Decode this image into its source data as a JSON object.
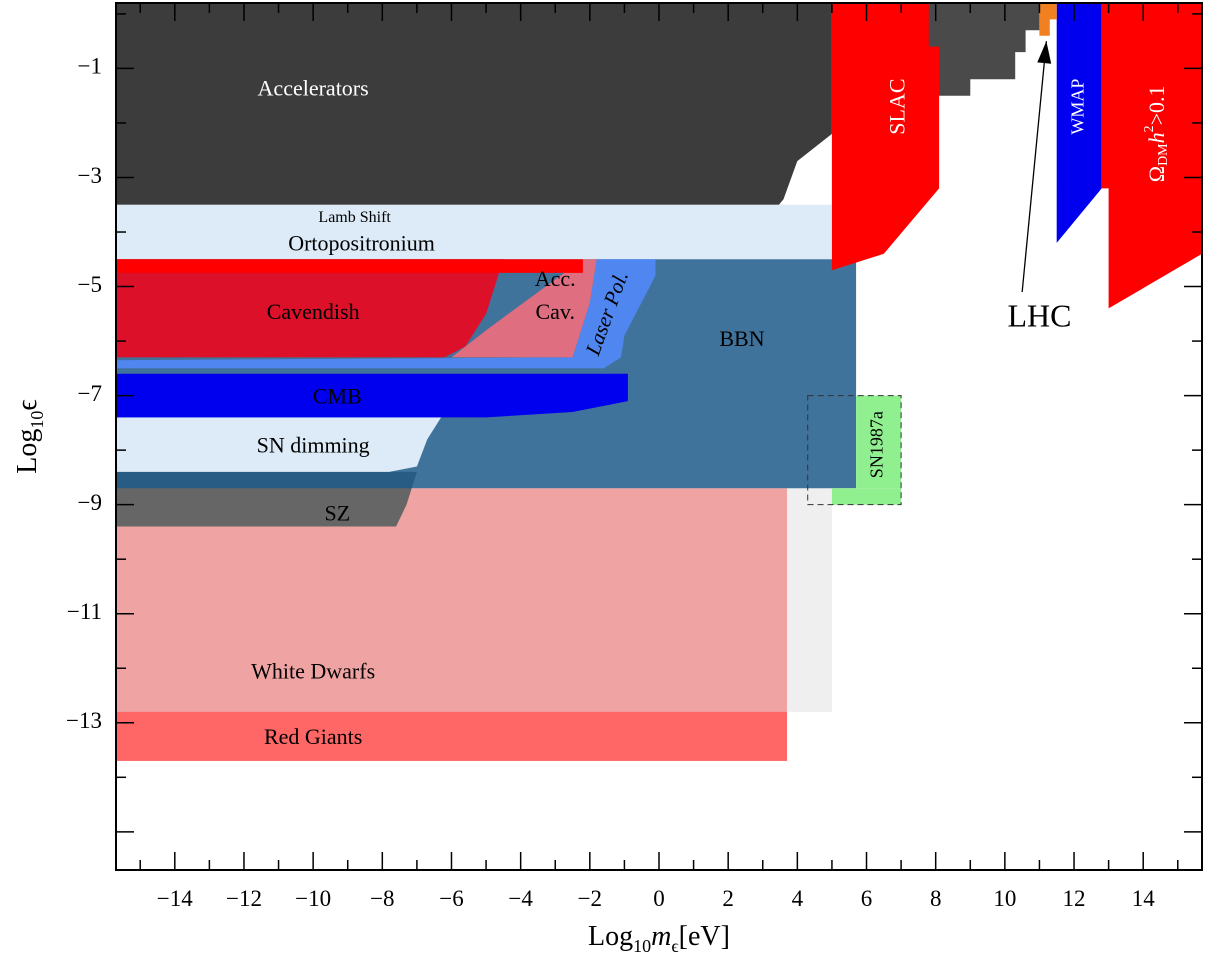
{
  "chart_data": {
    "type": "area",
    "title": "",
    "xlabel_main": "Log",
    "xlabel_sub": "10",
    "xlabel_var": "m",
    "xlabel_varsub": "ϵ",
    "xlabel_unit": "[eV]",
    "ylabel_main": "Log",
    "ylabel_sub": "10",
    "ylabel_var": "ϵ",
    "xlim": [
      -15.7,
      15.7
    ],
    "ylim": [
      -15.7,
      0.2
    ],
    "x_ticks": [
      -14,
      -12,
      -10,
      -8,
      -6,
      -4,
      -2,
      0,
      2,
      4,
      6,
      8,
      10,
      12,
      14
    ],
    "x_tick_labels": [
      "−14",
      "−12",
      "−10",
      "−8",
      "−6",
      "−4",
      "−2",
      "0",
      "2",
      "4",
      "6",
      "8",
      "10",
      "12",
      "14"
    ],
    "y_ticks": [
      -1,
      -3,
      -5,
      -7,
      -9,
      -11,
      -13
    ],
    "y_tick_labels": [
      "−1",
      "−3",
      "−5",
      "−7",
      "−9",
      "−11",
      "−13"
    ],
    "grid": false,
    "regions": [
      {
        "name": "Accelerators",
        "color": "#3c3c3c",
        "opacity": 1.0,
        "points": [
          [
            -15.7,
            0.2
          ],
          [
            5.0,
            0.2
          ],
          [
            5.0,
            -2.2
          ],
          [
            4.0,
            -2.7
          ],
          [
            3.6,
            -3.4
          ],
          [
            3.2,
            -3.7
          ],
          [
            2.0,
            -3.8
          ],
          [
            -15.7,
            -3.8
          ]
        ]
      },
      {
        "name": "Accelerators-steps",
        "color": "#4a4a4a",
        "opacity": 1.0,
        "points": [
          [
            5.0,
            0.2
          ],
          [
            11.0,
            0.2
          ],
          [
            11.0,
            -0.3
          ],
          [
            10.6,
            -0.3
          ],
          [
            10.6,
            -0.7
          ],
          [
            10.3,
            -0.7
          ],
          [
            10.3,
            -1.2
          ],
          [
            9.0,
            -1.2
          ],
          [
            9.0,
            -1.5
          ],
          [
            8.0,
            -1.5
          ],
          [
            8.0,
            -2.0
          ],
          [
            5.0,
            -2.0
          ]
        ]
      },
      {
        "name": "Lamb Shift",
        "color": "#999999",
        "opacity": 1.0,
        "points": [
          [
            -15.7,
            -3.5
          ],
          [
            3.6,
            -3.5
          ],
          [
            3.0,
            -3.95
          ],
          [
            -15.7,
            -3.95
          ]
        ]
      },
      {
        "name": "Ortopositronium",
        "color": "#dcebf7",
        "opacity": 1.0,
        "points": [
          [
            -15.7,
            -3.5
          ],
          [
            5.0,
            -3.5
          ],
          [
            5.0,
            -4.5
          ],
          [
            -15.7,
            -4.5
          ]
        ]
      },
      {
        "name": "White Dwarfs",
        "color": "#f0a3a3",
        "opacity": 1.0,
        "points": [
          [
            -15.7,
            -8.7
          ],
          [
            3.7,
            -8.7
          ],
          [
            3.7,
            -13.7
          ],
          [
            -15.7,
            -13.7
          ]
        ]
      },
      {
        "name": "White Dwarfs-ext",
        "color": "#efefef",
        "opacity": 1.0,
        "points": [
          [
            3.7,
            -8.7
          ],
          [
            5.0,
            -8.7
          ],
          [
            5.0,
            -12.8
          ],
          [
            3.7,
            -12.8
          ]
        ]
      },
      {
        "name": "Red Giants",
        "color": "#ff6666",
        "opacity": 1.0,
        "points": [
          [
            -15.7,
            -12.8
          ],
          [
            3.7,
            -12.8
          ],
          [
            3.7,
            -13.7
          ],
          [
            -15.7,
            -13.7
          ]
        ]
      },
      {
        "name": "SZ",
        "color": "#666666",
        "opacity": 1.0,
        "points": [
          [
            -15.7,
            -8.4
          ],
          [
            -7.0,
            -8.4
          ],
          [
            -7.3,
            -9.0
          ],
          [
            -7.6,
            -9.4
          ],
          [
            -15.7,
            -9.4
          ]
        ]
      },
      {
        "name": "BBN",
        "color": "#1e5a8a",
        "opacity": 0.85,
        "points": [
          [
            -15.7,
            -4.5
          ],
          [
            5.7,
            -4.5
          ],
          [
            5.7,
            -8.7
          ],
          [
            -15.7,
            -8.7
          ]
        ]
      },
      {
        "name": "SN dimming",
        "color": "#dcebf7",
        "opacity": 1.0,
        "points": [
          [
            -15.7,
            -7.4
          ],
          [
            -6.3,
            -7.4
          ],
          [
            -6.7,
            -7.8
          ],
          [
            -7.0,
            -8.3
          ],
          [
            -7.8,
            -8.4
          ],
          [
            -15.7,
            -8.4
          ]
        ]
      },
      {
        "name": "CMB",
        "color": "#0000ee",
        "opacity": 1.0,
        "points": [
          [
            -15.7,
            -6.6
          ],
          [
            -0.9,
            -6.6
          ],
          [
            -0.9,
            -7.1
          ],
          [
            -2.5,
            -7.3
          ],
          [
            -5.0,
            -7.4
          ],
          [
            -15.7,
            -7.4
          ]
        ]
      },
      {
        "name": "Laser Pol.",
        "color": "#4f86f0",
        "opacity": 1.0,
        "points": [
          [
            -1.8,
            -4.5
          ],
          [
            -0.1,
            -4.5
          ],
          [
            -0.1,
            -4.8
          ],
          [
            -1.0,
            -5.9
          ],
          [
            -1.1,
            -6.3
          ],
          [
            -1.6,
            -6.5
          ],
          [
            -15.7,
            -6.5
          ],
          [
            -15.7,
            -6.35
          ],
          [
            -2.5,
            -6.3
          ],
          [
            -2.0,
            -5.3
          ]
        ]
      },
      {
        "name": "Acc. Cav.",
        "color": "#de6e80",
        "opacity": 1.0,
        "points": [
          [
            -2.2,
            -4.5
          ],
          [
            -1.8,
            -4.5
          ],
          [
            -2.0,
            -5.3
          ],
          [
            -2.5,
            -6.3
          ],
          [
            -6.0,
            -6.3
          ],
          [
            -5.0,
            -5.8
          ]
        ]
      },
      {
        "name": "Cavendish",
        "color": "#dc1028",
        "opacity": 1.0,
        "points": [
          [
            -15.7,
            -4.5
          ],
          [
            -4.5,
            -4.5
          ],
          [
            -5.0,
            -5.5
          ],
          [
            -5.6,
            -6.1
          ],
          [
            -6.2,
            -6.3
          ],
          [
            -15.7,
            -6.3
          ]
        ]
      },
      {
        "name": "Cavendish-top",
        "color": "#ff0000",
        "opacity": 1.0,
        "points": [
          [
            -15.7,
            -4.5
          ],
          [
            -2.2,
            -4.5
          ],
          [
            -2.2,
            -4.75
          ],
          [
            -15.7,
            -4.75
          ]
        ]
      },
      {
        "name": "SN1987a",
        "color": "#90f090",
        "opacity": 1.0,
        "points": [
          [
            5.0,
            -8.7
          ],
          [
            7.0,
            -8.7
          ],
          [
            7.0,
            -9.0
          ],
          [
            5.0,
            -9.0
          ]
        ]
      },
      {
        "name": "SN1987a-upper",
        "color": "#90f090",
        "opacity": 1.0,
        "points": [
          [
            5.7,
            -7.0
          ],
          [
            7.0,
            -7.0
          ],
          [
            7.0,
            -8.7
          ],
          [
            5.7,
            -8.7
          ]
        ]
      },
      {
        "name": "SLAC",
        "color": "#ff0000",
        "opacity": 1.0,
        "points": [
          [
            5.0,
            0.2
          ],
          [
            7.8,
            0.2
          ],
          [
            7.8,
            -0.6
          ],
          [
            8.1,
            -0.6
          ],
          [
            8.1,
            -3.2
          ],
          [
            6.5,
            -4.4
          ],
          [
            5.0,
            -4.7
          ]
        ]
      },
      {
        "name": "WMAP",
        "color": "#0000ee",
        "opacity": 1.0,
        "points": [
          [
            11.5,
            0.2
          ],
          [
            12.8,
            0.2
          ],
          [
            12.8,
            -3.2
          ],
          [
            11.5,
            -4.2
          ]
        ]
      },
      {
        "name": "Omega",
        "color": "#ff0000",
        "opacity": 1.0,
        "points": [
          [
            12.8,
            0.2
          ],
          [
            15.7,
            0.2
          ],
          [
            15.7,
            -4.4
          ],
          [
            13.0,
            -5.4
          ],
          [
            13.0,
            -3.2
          ],
          [
            12.8,
            -3.2
          ]
        ]
      },
      {
        "name": "LHC",
        "color": "#f08020",
        "opacity": 1.0,
        "points": [
          [
            11.0,
            0.2
          ],
          [
            11.5,
            0.2
          ],
          [
            11.5,
            -0.1
          ],
          [
            11.3,
            -0.1
          ],
          [
            11.3,
            -0.4
          ],
          [
            11.0,
            -0.4
          ]
        ]
      }
    ],
    "sn1987a_box": {
      "x": [
        4.3,
        7.0
      ],
      "y": [
        -7.0,
        -9.0
      ]
    },
    "labels": [
      {
        "text": "Accelerators",
        "x": -10.0,
        "y": -1.4,
        "color": "#ffffff",
        "size": 22
      },
      {
        "text": "Lamb Shift",
        "x": -8.8,
        "y": -3.75,
        "color": "#000000",
        "size": 16
      },
      {
        "text": "Ortopositronium",
        "x": -8.6,
        "y": -4.25,
        "color": "#000000",
        "size": 22
      },
      {
        "text": "Acc.",
        "x": -3.0,
        "y": -4.9,
        "color": "#000000",
        "size": 22
      },
      {
        "text": "Cav.",
        "x": -3.0,
        "y": -5.5,
        "color": "#000000",
        "size": 22
      },
      {
        "text": "Cavendish",
        "x": -10.0,
        "y": -5.5,
        "color": "#000000",
        "size": 22
      },
      {
        "text": "BBN",
        "x": 2.4,
        "y": -6.0,
        "color": "#000000",
        "size": 22
      },
      {
        "text": "CMB",
        "x": -9.3,
        "y": -7.05,
        "color": "#000000",
        "size": 22
      },
      {
        "text": "SN dimming",
        "x": -10.0,
        "y": -7.95,
        "color": "#000000",
        "size": 22
      },
      {
        "text": "SZ",
        "x": -9.3,
        "y": -9.2,
        "color": "#000000",
        "size": 22
      },
      {
        "text": "White Dwarfs",
        "x": -10.0,
        "y": -12.1,
        "color": "#000000",
        "size": 22
      },
      {
        "text": "Red Giants",
        "x": -10.0,
        "y": -13.3,
        "color": "#000000",
        "size": 22
      },
      {
        "text": "LHC",
        "x": 11.0,
        "y": -5.6,
        "color": "#000000",
        "size": 32
      }
    ],
    "rotated_labels": [
      {
        "text": "Laser Pol.",
        "x": -1.45,
        "y": -5.5,
        "angle": -70,
        "color": "#000000",
        "size": 21
      },
      {
        "text": "SN1987a",
        "x": 6.35,
        "y": -7.9,
        "angle": -90,
        "color": "#000000",
        "size": 18
      },
      {
        "text": "SLAC",
        "x": 6.95,
        "y": -1.7,
        "angle": -90,
        "color": "#ffffff",
        "size": 22
      },
      {
        "text": "WMAP",
        "x": 12.15,
        "y": -1.7,
        "angle": -90,
        "color": "#ffffff",
        "size": 18
      }
    ],
    "omega_label": {
      "main": "Ω",
      "sub": "DM",
      "var": "h",
      "sup": "2",
      "rest": ">0.1",
      "x": 14.45,
      "y": -2.2,
      "color": "#ffffff"
    },
    "lhc_arrow": {
      "from": [
        10.5,
        -5.1
      ],
      "to": [
        11.2,
        -0.5
      ]
    }
  }
}
